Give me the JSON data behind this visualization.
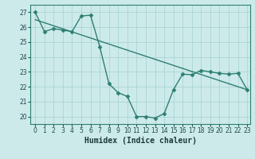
{
  "line1_x": [
    0,
    1,
    2,
    3,
    4,
    5,
    6,
    7,
    8,
    9,
    10,
    11,
    12,
    13,
    14,
    15,
    16,
    17,
    18,
    19,
    20,
    21,
    22,
    23
  ],
  "line1_y": [
    27.0,
    25.7,
    25.9,
    25.8,
    25.7,
    26.75,
    26.8,
    24.7,
    22.2,
    21.6,
    21.35,
    20.0,
    20.0,
    19.9,
    20.2,
    21.8,
    22.85,
    22.8,
    23.1,
    23.0,
    22.9,
    22.85,
    22.9,
    21.8
  ],
  "line2_x": [
    0,
    23
  ],
  "line2_y": [
    26.5,
    21.8
  ],
  "color": "#2e7f72",
  "bg_color": "#cdeaea",
  "grid_color": "#aad4d4",
  "xlabel": "Humidex (Indice chaleur)",
  "ylim": [
    19.5,
    27.5
  ],
  "xlim": [
    -0.5,
    23.3
  ],
  "yticks": [
    20,
    21,
    22,
    23,
    24,
    25,
    26,
    27
  ],
  "xticks": [
    0,
    1,
    2,
    3,
    4,
    5,
    6,
    7,
    8,
    9,
    10,
    11,
    12,
    13,
    14,
    15,
    16,
    17,
    18,
    19,
    20,
    21,
    22,
    23
  ],
  "marker": "D",
  "markersize": 2.5,
  "linewidth": 1.0,
  "tick_fontsize": 5.5,
  "xlabel_fontsize": 7.0
}
